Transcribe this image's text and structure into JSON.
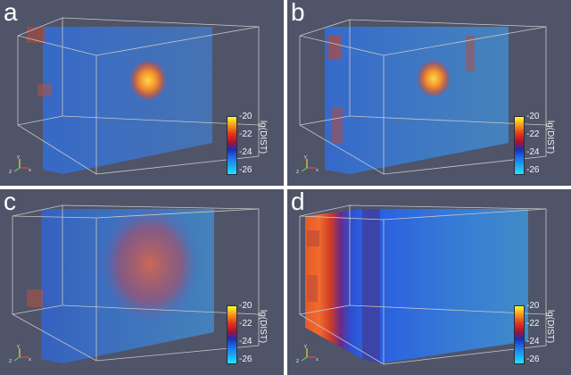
{
  "panels": [
    {
      "label": "a",
      "id": "a"
    },
    {
      "label": "b",
      "id": "b"
    },
    {
      "label": "c",
      "id": "c"
    },
    {
      "label": "d",
      "id": "d"
    }
  ],
  "colorbar": {
    "title": "lg(DIST)",
    "ticks": [
      "-20",
      "-22",
      "-24",
      "-26"
    ],
    "colors": [
      "#fffb2e",
      "#f59b1a",
      "#e63b1b",
      "#b3122b",
      "#1d2db5",
      "#1e6fe8",
      "#1aa9f3",
      "#26e3ff"
    ]
  }
}
